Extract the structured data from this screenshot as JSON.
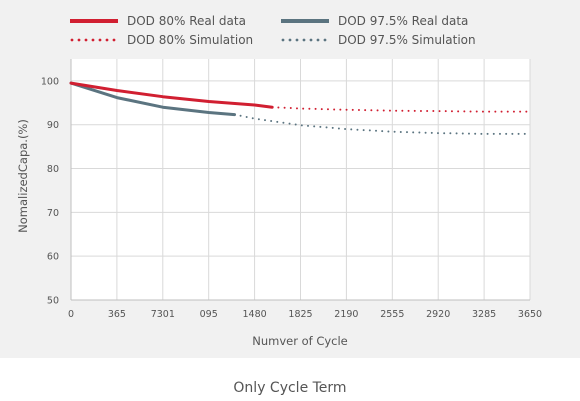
{
  "chart_data": {
    "type": "line",
    "legend": [
      {
        "label": "DOD 80% Real data",
        "color": "#d11f31",
        "style": "solid"
      },
      {
        "label": "DOD 97.5% Real data",
        "color": "#5b7480",
        "style": "solid"
      },
      {
        "label": "DOD 80% Simulation",
        "color": "#d11f31",
        "style": "dotted"
      },
      {
        "label": "DOD 97.5% Simulation",
        "color": "#5b7480",
        "style": "dotted"
      }
    ],
    "x_tick_labels": [
      "0",
      "365",
      "7301",
      "095",
      "1480",
      "1825",
      "2190",
      "2555",
      "2920",
      "3285",
      "3650"
    ],
    "y_ticks": [
      50,
      60,
      70,
      80,
      90,
      100
    ],
    "xlim": [
      0,
      3650
    ],
    "ylim": [
      50,
      105
    ],
    "xlabel": "Numver of Cycle",
    "ylabel": "NomalizedCapa.(%)",
    "grid": true,
    "series": [
      {
        "name": "DOD 80% Real data",
        "color": "#d11f31",
        "style": "solid",
        "x": [
          0,
          365,
          730,
          1095,
          1460,
          1600
        ],
        "y": [
          99.5,
          97.8,
          96.4,
          95.3,
          94.5,
          94.0
        ]
      },
      {
        "name": "DOD 97.5% Real data",
        "color": "#5b7480",
        "style": "solid",
        "x": [
          0,
          365,
          730,
          1095,
          1300
        ],
        "y": [
          99.5,
          96.2,
          94.0,
          92.8,
          92.3
        ]
      },
      {
        "name": "DOD 80% Simulation",
        "color": "#d11f31",
        "style": "dotted",
        "x": [
          1600,
          1825,
          2190,
          2555,
          2920,
          3285,
          3650
        ],
        "y": [
          94.0,
          93.7,
          93.4,
          93.2,
          93.1,
          93.0,
          93.0
        ]
      },
      {
        "name": "DOD 97.5% Simulation",
        "color": "#5b7480",
        "style": "dotted",
        "x": [
          1300,
          1460,
          1825,
          2190,
          2555,
          2920,
          3285,
          3650
        ],
        "y": [
          92.3,
          91.4,
          89.9,
          89.0,
          88.4,
          88.1,
          87.9,
          87.9
        ]
      }
    ]
  },
  "caption": "Only Cycle Term"
}
